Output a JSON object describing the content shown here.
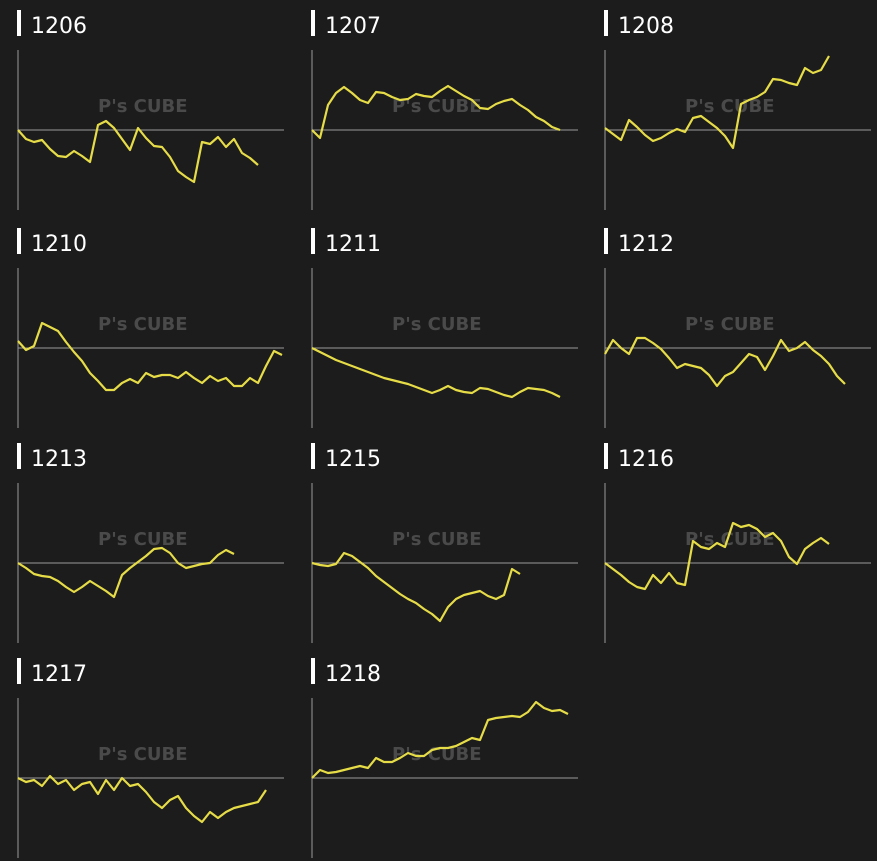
{
  "chart_data": [
    {
      "type": "line",
      "title": "1206",
      "color": "#e6dc48",
      "ylim": [
        -80,
        80
      ],
      "xlim": [
        0,
        33
      ],
      "baseline": 0,
      "values": [
        0,
        -9,
        -12,
        -10,
        -19,
        -26,
        -27,
        -21,
        -26,
        -32,
        5,
        9,
        2,
        -9,
        -20,
        2,
        -8,
        -16,
        -17,
        -27,
        -41,
        -47,
        -52,
        -12,
        -14,
        -7,
        -17,
        -9,
        -23,
        -28,
        -35
      ]
    },
    {
      "type": "line",
      "title": "1207",
      "color": "#e6dc48",
      "ylim": [
        -80,
        80
      ],
      "xlim": [
        0,
        33
      ],
      "baseline": 0,
      "values": [
        0,
        -8,
        25,
        37,
        43,
        37,
        30,
        27,
        38,
        37,
        33,
        30,
        31,
        36,
        34,
        33,
        39,
        44,
        39,
        34,
        30,
        22,
        21,
        26,
        29,
        31,
        25,
        20,
        13,
        9,
        3,
        0
      ]
    },
    {
      "type": "line",
      "title": "1208",
      "color": "#e6dc48",
      "ylim": [
        -80,
        80
      ],
      "xlim": [
        0,
        33
      ],
      "baseline": 0,
      "values": [
        2,
        -4,
        -10,
        10,
        3,
        -5,
        -11,
        -8,
        -3,
        1,
        -2,
        12,
        14,
        8,
        2,
        -6,
        -18,
        26,
        30,
        33,
        38,
        51,
        50,
        47,
        45,
        62,
        57,
        60,
        74
      ]
    },
    {
      "type": "line",
      "title": "1210",
      "color": "#e6dc48",
      "ylim": [
        -80,
        80
      ],
      "xlim": [
        0,
        33
      ],
      "baseline": 0,
      "values": [
        7,
        -2,
        2,
        25,
        21,
        17,
        6,
        -4,
        -13,
        -25,
        -33,
        -42,
        -42,
        -35,
        -31,
        -35,
        -25,
        -29,
        -27,
        -27,
        -30,
        -24,
        -30,
        -35,
        -28,
        -33,
        -30,
        -38,
        -38,
        -30,
        -35,
        -18,
        -3,
        -7
      ]
    },
    {
      "type": "line",
      "title": "1211",
      "color": "#e6dc48",
      "ylim": [
        -80,
        80
      ],
      "xlim": [
        0,
        33
      ],
      "baseline": 0,
      "values": [
        0,
        -4,
        -8,
        -12,
        -15,
        -18,
        -21,
        -24,
        -27,
        -30,
        -32,
        -34,
        -36,
        -39,
        -42,
        -45,
        -42,
        -38,
        -42,
        -44,
        -45,
        -40,
        -41,
        -44,
        -47,
        -49,
        -44,
        -40,
        -41,
        -42,
        -45,
        -49
      ]
    },
    {
      "type": "line",
      "title": "1212",
      "color": "#e6dc48",
      "ylim": [
        -80,
        80
      ],
      "xlim": [
        0,
        33
      ],
      "baseline": 0,
      "values": [
        -6,
        8,
        0,
        -6,
        10,
        10,
        5,
        -1,
        -10,
        -20,
        -16,
        -18,
        -20,
        -27,
        -38,
        -28,
        -24,
        -15,
        -6,
        -9,
        -22,
        -8,
        8,
        -3,
        0,
        6,
        -2,
        -8,
        -16,
        -28,
        -36
      ]
    },
    {
      "type": "line",
      "title": "1213",
      "color": "#e6dc48",
      "ylim": [
        -80,
        80
      ],
      "xlim": [
        0,
        33
      ],
      "baseline": 0,
      "values": [
        0,
        -5,
        -11,
        -13,
        -14,
        -18,
        -24,
        -29,
        -24,
        -18,
        -23,
        -28,
        -34,
        -12,
        -5,
        1,
        7,
        14,
        15,
        10,
        0,
        -5,
        -3,
        -1,
        0,
        8,
        13,
        9
      ]
    },
    {
      "type": "line",
      "title": "1215",
      "color": "#e6dc48",
      "ylim": [
        -80,
        80
      ],
      "xlim": [
        0,
        33
      ],
      "baseline": 0,
      "values": [
        0,
        -2,
        -3,
        -1,
        10,
        7,
        1,
        -5,
        -13,
        -19,
        -25,
        -31,
        -36,
        -40,
        -46,
        -51,
        -58,
        -44,
        -36,
        -32,
        -30,
        -28,
        -33,
        -36,
        -32,
        -6,
        -11
      ]
    },
    {
      "type": "line",
      "title": "1216",
      "color": "#e6dc48",
      "ylim": [
        -80,
        80
      ],
      "xlim": [
        0,
        33
      ],
      "baseline": 0,
      "values": [
        0,
        -6,
        -12,
        -19,
        -24,
        -26,
        -12,
        -20,
        -10,
        -20,
        -22,
        22,
        16,
        14,
        20,
        16,
        40,
        36,
        38,
        34,
        26,
        30,
        22,
        6,
        -1,
        14,
        20,
        25,
        19
      ]
    },
    {
      "type": "line",
      "title": "1217",
      "color": "#e6dc48",
      "ylim": [
        -80,
        80
      ],
      "xlim": [
        0,
        33
      ],
      "baseline": 0,
      "values": [
        0,
        -4,
        -2,
        -8,
        2,
        -6,
        -2,
        -12,
        -6,
        -4,
        -16,
        -2,
        -12,
        0,
        -8,
        -6,
        -14,
        -24,
        -30,
        -22,
        -18,
        -30,
        -38,
        -44,
        -34,
        -40,
        -34,
        -30,
        -28,
        -26,
        -24,
        -12
      ]
    },
    {
      "type": "line",
      "title": "1218",
      "color": "#e6dc48",
      "ylim": [
        -80,
        80
      ],
      "xlim": [
        0,
        33
      ],
      "baseline": 0,
      "values": [
        0,
        8,
        5,
        6,
        8,
        10,
        12,
        10,
        20,
        16,
        16,
        20,
        25,
        22,
        22,
        28,
        30,
        30,
        32,
        36,
        40,
        38,
        58,
        60,
        61,
        62,
        61,
        66,
        76,
        70,
        67,
        68,
        64
      ]
    }
  ],
  "watermark": "P's CUBE"
}
